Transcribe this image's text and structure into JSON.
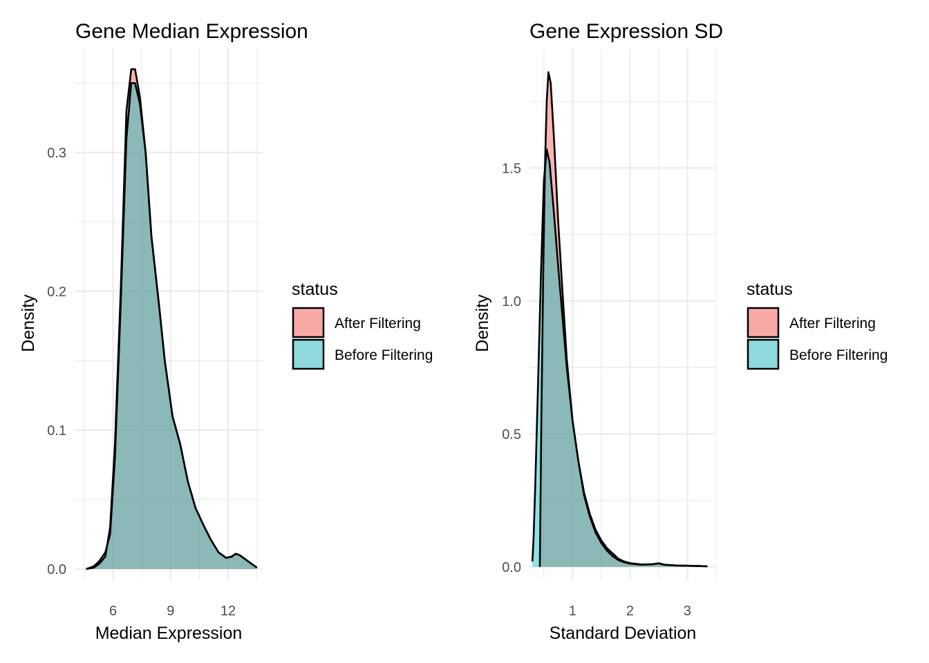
{
  "chart_data": [
    {
      "type": "area",
      "title": "Gene Median Expression",
      "xlabel": "Median Expression",
      "ylabel": "Density",
      "xlim": [
        4.0,
        13.8
      ],
      "ylim": [
        -0.008,
        0.375
      ],
      "x_ticks": [
        6,
        9,
        12
      ],
      "x_tick_labels": [
        "6",
        "9",
        "12"
      ],
      "y_ticks": [
        0.0,
        0.1,
        0.2,
        0.3
      ],
      "y_tick_labels": [
        "0.0",
        "0.1",
        "0.2",
        "0.3"
      ],
      "grid": true,
      "legend": {
        "title": "status",
        "placement": "right",
        "entries": [
          "After Filtering",
          "Before Filtering"
        ],
        "colors": [
          "#F8A9A6",
          "#8DD9DB"
        ]
      },
      "series": [
        {
          "name": "After Filtering",
          "color": "#F8766D",
          "points": [
            [
              4.6,
              0.0
            ],
            [
              5.0,
              0.001
            ],
            [
              5.3,
              0.004
            ],
            [
              5.6,
              0.009
            ],
            [
              5.85,
              0.03
            ],
            [
              6.1,
              0.09
            ],
            [
              6.4,
              0.2
            ],
            [
              6.7,
              0.33
            ],
            [
              6.95,
              0.36
            ],
            [
              7.15,
              0.36
            ],
            [
              7.4,
              0.34
            ],
            [
              7.7,
              0.3
            ],
            [
              8.0,
              0.24
            ],
            [
              8.4,
              0.19
            ],
            [
              8.7,
              0.15
            ],
            [
              9.1,
              0.11
            ],
            [
              9.5,
              0.09
            ],
            [
              9.9,
              0.063
            ],
            [
              10.3,
              0.044
            ],
            [
              10.7,
              0.032
            ],
            [
              11.1,
              0.021
            ],
            [
              11.5,
              0.012
            ],
            [
              11.9,
              0.008
            ],
            [
              12.2,
              0.009
            ],
            [
              12.4,
              0.011
            ],
            [
              12.6,
              0.01
            ],
            [
              12.9,
              0.007
            ],
            [
              13.2,
              0.004
            ],
            [
              13.5,
              0.001
            ]
          ]
        },
        {
          "name": "Before Filtering",
          "color": "#00BFC4",
          "points": [
            [
              4.6,
              0.0
            ],
            [
              5.0,
              0.002
            ],
            [
              5.3,
              0.006
            ],
            [
              5.6,
              0.012
            ],
            [
              5.85,
              0.025
            ],
            [
              6.1,
              0.08
            ],
            [
              6.4,
              0.19
            ],
            [
              6.7,
              0.31
            ],
            [
              6.95,
              0.35
            ],
            [
              7.15,
              0.35
            ],
            [
              7.4,
              0.335
            ],
            [
              7.7,
              0.3
            ],
            [
              8.0,
              0.24
            ],
            [
              8.4,
              0.19
            ],
            [
              8.7,
              0.15
            ],
            [
              9.1,
              0.11
            ],
            [
              9.5,
              0.09
            ],
            [
              9.9,
              0.063
            ],
            [
              10.3,
              0.044
            ],
            [
              10.7,
              0.032
            ],
            [
              11.1,
              0.021
            ],
            [
              11.5,
              0.012
            ],
            [
              11.9,
              0.008
            ],
            [
              12.2,
              0.009
            ],
            [
              12.4,
              0.011
            ],
            [
              12.6,
              0.01
            ],
            [
              12.9,
              0.007
            ],
            [
              13.2,
              0.004
            ],
            [
              13.5,
              0.001
            ]
          ]
        }
      ]
    },
    {
      "type": "area",
      "title": "Gene Expression SD",
      "xlabel": "Standard Deviation",
      "ylabel": "Density",
      "xlim": [
        0.25,
        3.5
      ],
      "ylim": [
        -0.05,
        1.95
      ],
      "x_ticks": [
        1,
        2,
        3
      ],
      "x_tick_labels": [
        "1",
        "2",
        "3"
      ],
      "y_ticks": [
        0.0,
        0.5,
        1.0,
        1.5
      ],
      "y_tick_labels": [
        "0.0",
        "0.5",
        "1.0",
        "1.5"
      ],
      "grid": true,
      "legend": {
        "title": "status",
        "placement": "right",
        "entries": [
          "After Filtering",
          "Before Filtering"
        ],
        "colors": [
          "#F8A9A6",
          "#8DD9DB"
        ]
      },
      "series": [
        {
          "name": "After Filtering",
          "color": "#F8766D",
          "points": [
            [
              0.43,
              0.0
            ],
            [
              0.44,
              0.2
            ],
            [
              0.46,
              0.6
            ],
            [
              0.49,
              1.1
            ],
            [
              0.52,
              1.5
            ],
            [
              0.55,
              1.75
            ],
            [
              0.58,
              1.86
            ],
            [
              0.62,
              1.82
            ],
            [
              0.68,
              1.6
            ],
            [
              0.75,
              1.3
            ],
            [
              0.82,
              1.05
            ],
            [
              0.9,
              0.78
            ],
            [
              1.0,
              0.55
            ],
            [
              1.1,
              0.4
            ],
            [
              1.2,
              0.27
            ],
            [
              1.3,
              0.19
            ],
            [
              1.4,
              0.13
            ],
            [
              1.5,
              0.09
            ],
            [
              1.6,
              0.06
            ],
            [
              1.7,
              0.04
            ],
            [
              1.8,
              0.025
            ],
            [
              1.9,
              0.017
            ],
            [
              2.0,
              0.012
            ],
            [
              2.2,
              0.008
            ],
            [
              2.4,
              0.01
            ],
            [
              2.5,
              0.013
            ],
            [
              2.6,
              0.008
            ],
            [
              2.8,
              0.005
            ],
            [
              3.0,
              0.004
            ],
            [
              3.2,
              0.003
            ],
            [
              3.35,
              0.002
            ]
          ]
        },
        {
          "name": "Before Filtering",
          "color": "#00BFC4",
          "points": [
            [
              0.3,
              0.02
            ],
            [
              0.32,
              0.1
            ],
            [
              0.35,
              0.3
            ],
            [
              0.4,
              0.7
            ],
            [
              0.45,
              1.1
            ],
            [
              0.5,
              1.45
            ],
            [
              0.55,
              1.57
            ],
            [
              0.6,
              1.52
            ],
            [
              0.68,
              1.32
            ],
            [
              0.75,
              1.13
            ],
            [
              0.82,
              0.95
            ],
            [
              0.9,
              0.75
            ],
            [
              1.0,
              0.55
            ],
            [
              1.1,
              0.4
            ],
            [
              1.2,
              0.28
            ],
            [
              1.3,
              0.2
            ],
            [
              1.4,
              0.14
            ],
            [
              1.5,
              0.1
            ],
            [
              1.6,
              0.07
            ],
            [
              1.7,
              0.05
            ],
            [
              1.8,
              0.03
            ],
            [
              1.9,
              0.02
            ],
            [
              2.0,
              0.014
            ],
            [
              2.2,
              0.009
            ],
            [
              2.4,
              0.01
            ],
            [
              2.5,
              0.013
            ],
            [
              2.6,
              0.008
            ],
            [
              2.8,
              0.005
            ],
            [
              3.0,
              0.004
            ],
            [
              3.2,
              0.003
            ],
            [
              3.35,
              0.002
            ]
          ]
        }
      ]
    }
  ]
}
